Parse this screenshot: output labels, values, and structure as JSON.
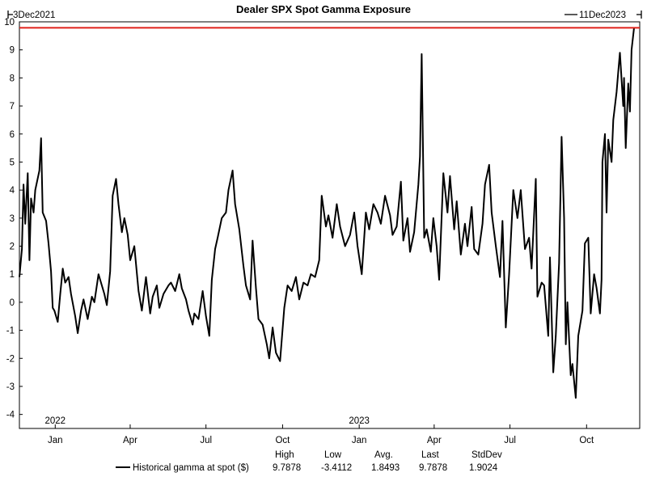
{
  "chart_data": {
    "type": "line",
    "title": "Dealer SPX Spot Gamma Exposure",
    "start_label": "3Dec2021",
    "end_label": "11Dec2023",
    "x_range": [
      "2021-12-03",
      "2023-12-11"
    ],
    "ylim": [
      -4.5,
      10
    ],
    "y_ticks": [
      -4,
      -3,
      -2,
      -1,
      0,
      1,
      2,
      3,
      4,
      5,
      6,
      7,
      8,
      9,
      10
    ],
    "x_ticks": [
      {
        "date": "2022-01-15",
        "label": "Jan"
      },
      {
        "date": "2022-04-15",
        "label": "Apr"
      },
      {
        "date": "2022-07-15",
        "label": "Jul"
      },
      {
        "date": "2022-10-15",
        "label": "Oct"
      },
      {
        "date": "2023-01-15",
        "label": "Jan"
      },
      {
        "date": "2023-04-15",
        "label": "Apr"
      },
      {
        "date": "2023-07-15",
        "label": "Jul"
      },
      {
        "date": "2023-10-15",
        "label": "Oct"
      }
    ],
    "year_labels": [
      {
        "date": "2022-01-15",
        "label": "2022"
      },
      {
        "date": "2023-01-15",
        "label": "2023"
      }
    ],
    "reference_line": {
      "value": 9.7878,
      "color": "#e0221b"
    },
    "grid": false,
    "series": [
      {
        "name": "Historical gamma at spot ($)",
        "color": "#000000",
        "points": [
          [
            "2021-12-03",
            0.9
          ],
          [
            "2021-12-06",
            1.9
          ],
          [
            "2021-12-08",
            4.2
          ],
          [
            "2021-12-10",
            2.8
          ],
          [
            "2021-12-13",
            4.6
          ],
          [
            "2021-12-15",
            1.5
          ],
          [
            "2021-12-17",
            3.7
          ],
          [
            "2021-12-20",
            3.2
          ],
          [
            "2021-12-22",
            4.0
          ],
          [
            "2021-12-27",
            4.7
          ],
          [
            "2021-12-29",
            5.85
          ],
          [
            "2021-12-31",
            3.2
          ],
          [
            "2022-01-04",
            2.9
          ],
          [
            "2022-01-07",
            2.1
          ],
          [
            "2022-01-10",
            1.1
          ],
          [
            "2022-01-12",
            -0.2
          ],
          [
            "2022-01-14",
            -0.3
          ],
          [
            "2022-01-18",
            -0.7
          ],
          [
            "2022-01-21",
            0.3
          ],
          [
            "2022-01-24",
            1.2
          ],
          [
            "2022-01-27",
            0.7
          ],
          [
            "2022-01-31",
            0.9
          ],
          [
            "2022-02-03",
            0.3
          ],
          [
            "2022-02-08",
            -0.5
          ],
          [
            "2022-02-11",
            -1.1
          ],
          [
            "2022-02-15",
            -0.3
          ],
          [
            "2022-02-18",
            0.1
          ],
          [
            "2022-02-23",
            -0.6
          ],
          [
            "2022-02-28",
            0.2
          ],
          [
            "2022-03-03",
            0.0
          ],
          [
            "2022-03-08",
            1.0
          ],
          [
            "2022-03-11",
            0.7
          ],
          [
            "2022-03-15",
            0.3
          ],
          [
            "2022-03-18",
            -0.1
          ],
          [
            "2022-03-22",
            1.1
          ],
          [
            "2022-03-25",
            3.8
          ],
          [
            "2022-03-29",
            4.4
          ],
          [
            "2022-04-01",
            3.5
          ],
          [
            "2022-04-05",
            2.5
          ],
          [
            "2022-04-08",
            3.0
          ],
          [
            "2022-04-12",
            2.4
          ],
          [
            "2022-04-15",
            1.5
          ],
          [
            "2022-04-20",
            2.0
          ],
          [
            "2022-04-25",
            0.4
          ],
          [
            "2022-04-29",
            -0.3
          ],
          [
            "2022-05-04",
            0.9
          ],
          [
            "2022-05-09",
            -0.4
          ],
          [
            "2022-05-12",
            0.2
          ],
          [
            "2022-05-17",
            0.6
          ],
          [
            "2022-05-20",
            -0.2
          ],
          [
            "2022-05-25",
            0.3
          ],
          [
            "2022-05-31",
            0.6
          ],
          [
            "2022-06-03",
            0.7
          ],
          [
            "2022-06-08",
            0.4
          ],
          [
            "2022-06-13",
            1.0
          ],
          [
            "2022-06-16",
            0.5
          ],
          [
            "2022-06-21",
            0.1
          ],
          [
            "2022-06-24",
            -0.3
          ],
          [
            "2022-06-29",
            -0.8
          ],
          [
            "2022-07-01",
            -0.4
          ],
          [
            "2022-07-06",
            -0.6
          ],
          [
            "2022-07-11",
            0.4
          ],
          [
            "2022-07-15",
            -0.5
          ],
          [
            "2022-07-19",
            -1.2
          ],
          [
            "2022-07-22",
            0.8
          ],
          [
            "2022-07-26",
            1.9
          ],
          [
            "2022-07-29",
            2.3
          ],
          [
            "2022-08-03",
            3.0
          ],
          [
            "2022-08-08",
            3.2
          ],
          [
            "2022-08-11",
            4.0
          ],
          [
            "2022-08-16",
            4.7
          ],
          [
            "2022-08-19",
            3.5
          ],
          [
            "2022-08-24",
            2.6
          ],
          [
            "2022-08-29",
            1.3
          ],
          [
            "2022-09-01",
            0.6
          ],
          [
            "2022-09-06",
            0.1
          ],
          [
            "2022-09-09",
            2.2
          ],
          [
            "2022-09-13",
            0.5
          ],
          [
            "2022-09-16",
            -0.6
          ],
          [
            "2022-09-21",
            -0.8
          ],
          [
            "2022-09-26",
            -1.5
          ],
          [
            "2022-09-29",
            -2.0
          ],
          [
            "2022-10-03",
            -0.9
          ],
          [
            "2022-10-07",
            -1.8
          ],
          [
            "2022-10-12",
            -2.1
          ],
          [
            "2022-10-17",
            -0.2
          ],
          [
            "2022-10-21",
            0.6
          ],
          [
            "2022-10-26",
            0.4
          ],
          [
            "2022-10-31",
            0.9
          ],
          [
            "2022-11-04",
            0.1
          ],
          [
            "2022-11-09",
            0.7
          ],
          [
            "2022-11-14",
            0.6
          ],
          [
            "2022-11-18",
            1.0
          ],
          [
            "2022-11-23",
            0.9
          ],
          [
            "2022-11-28",
            1.5
          ],
          [
            "2022-12-01",
            3.8
          ],
          [
            "2022-12-06",
            2.7
          ],
          [
            "2022-12-09",
            3.1
          ],
          [
            "2022-12-14",
            2.3
          ],
          [
            "2022-12-19",
            3.5
          ],
          [
            "2022-12-23",
            2.7
          ],
          [
            "2022-12-29",
            2.0
          ],
          [
            "2023-01-04",
            2.4
          ],
          [
            "2023-01-09",
            3.2
          ],
          [
            "2023-01-13",
            2.0
          ],
          [
            "2023-01-18",
            1.0
          ],
          [
            "2023-01-23",
            3.2
          ],
          [
            "2023-01-27",
            2.6
          ],
          [
            "2023-02-01",
            3.5
          ],
          [
            "2023-02-06",
            3.2
          ],
          [
            "2023-02-10",
            2.8
          ],
          [
            "2023-02-15",
            3.8
          ],
          [
            "2023-02-21",
            3.1
          ],
          [
            "2023-02-24",
            2.4
          ],
          [
            "2023-03-01",
            2.7
          ],
          [
            "2023-03-06",
            4.3
          ],
          [
            "2023-03-09",
            2.2
          ],
          [
            "2023-03-14",
            3.0
          ],
          [
            "2023-03-17",
            1.8
          ],
          [
            "2023-03-22",
            2.5
          ],
          [
            "2023-03-27",
            4.2
          ],
          [
            "2023-03-29",
            5.2
          ],
          [
            "2023-03-31",
            8.85
          ],
          [
            "2023-04-03",
            2.3
          ],
          [
            "2023-04-06",
            2.6
          ],
          [
            "2023-04-11",
            1.8
          ],
          [
            "2023-04-14",
            3.0
          ],
          [
            "2023-04-18",
            2.0
          ],
          [
            "2023-04-21",
            0.8
          ],
          [
            "2023-04-26",
            4.6
          ],
          [
            "2023-05-01",
            3.2
          ],
          [
            "2023-05-04",
            4.5
          ],
          [
            "2023-05-09",
            2.6
          ],
          [
            "2023-05-12",
            3.6
          ],
          [
            "2023-05-17",
            1.7
          ],
          [
            "2023-05-22",
            2.8
          ],
          [
            "2023-05-25",
            2.0
          ],
          [
            "2023-05-30",
            3.4
          ],
          [
            "2023-06-02",
            1.9
          ],
          [
            "2023-06-07",
            1.7
          ],
          [
            "2023-06-12",
            2.8
          ],
          [
            "2023-06-15",
            4.2
          ],
          [
            "2023-06-20",
            4.9
          ],
          [
            "2023-06-23",
            3.2
          ],
          [
            "2023-06-28",
            2.0
          ],
          [
            "2023-07-03",
            0.9
          ],
          [
            "2023-07-06",
            2.9
          ],
          [
            "2023-07-10",
            -0.9
          ],
          [
            "2023-07-14",
            1.0
          ],
          [
            "2023-07-19",
            4.0
          ],
          [
            "2023-07-24",
            3.0
          ],
          [
            "2023-07-28",
            4.0
          ],
          [
            "2023-08-02",
            1.9
          ],
          [
            "2023-08-07",
            2.3
          ],
          [
            "2023-08-10",
            1.2
          ],
          [
            "2023-08-15",
            4.4
          ],
          [
            "2023-08-17",
            0.2
          ],
          [
            "2023-08-22",
            0.7
          ],
          [
            "2023-08-25",
            0.6
          ],
          [
            "2023-08-30",
            -1.2
          ],
          [
            "2023-09-01",
            1.6
          ],
          [
            "2023-09-05",
            -2.5
          ],
          [
            "2023-09-08",
            -1.2
          ],
          [
            "2023-09-12",
            1.4
          ],
          [
            "2023-09-15",
            5.9
          ],
          [
            "2023-09-18",
            3.0
          ],
          [
            "2023-09-20",
            -1.5
          ],
          [
            "2023-09-22",
            0.0
          ],
          [
            "2023-09-26",
            -2.6
          ],
          [
            "2023-09-28",
            -2.2
          ],
          [
            "2023-10-02",
            -3.41
          ],
          [
            "2023-10-05",
            -1.2
          ],
          [
            "2023-10-10",
            -0.3
          ],
          [
            "2023-10-13",
            2.1
          ],
          [
            "2023-10-17",
            2.3
          ],
          [
            "2023-10-20",
            -0.4
          ],
          [
            "2023-10-24",
            1.0
          ],
          [
            "2023-10-27",
            0.5
          ],
          [
            "2023-10-31",
            -0.4
          ],
          [
            "2023-11-02",
            0.8
          ],
          [
            "2023-11-03",
            5.0
          ],
          [
            "2023-11-06",
            6.0
          ],
          [
            "2023-11-08",
            3.2
          ],
          [
            "2023-11-10",
            5.8
          ],
          [
            "2023-11-14",
            5.0
          ],
          [
            "2023-11-16",
            6.5
          ],
          [
            "2023-11-20",
            7.5
          ],
          [
            "2023-11-22",
            8.2
          ],
          [
            "2023-11-24",
            8.9
          ],
          [
            "2023-11-28",
            7.0
          ],
          [
            "2023-11-29",
            8.0
          ],
          [
            "2023-12-01",
            5.5
          ],
          [
            "2023-12-04",
            7.8
          ],
          [
            "2023-12-06",
            6.8
          ],
          [
            "2023-12-08",
            9.0
          ],
          [
            "2023-12-11",
            9.7878
          ]
        ]
      }
    ],
    "stats": {
      "headers": [
        "High",
        "Low",
        "Avg.",
        "Last",
        "StdDev"
      ],
      "values": [
        "9.7878",
        "-3.4112",
        "1.8493",
        "9.7878",
        "1.9024"
      ]
    }
  }
}
